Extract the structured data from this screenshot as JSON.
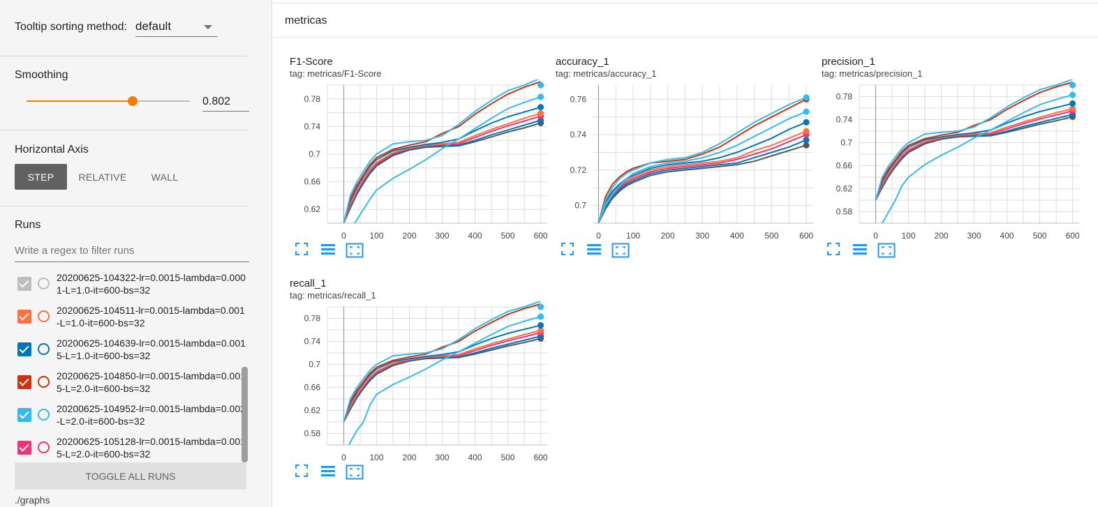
{
  "sidebar": {
    "tooltip_label": "Tooltip sorting method:",
    "tooltip_value": "default",
    "smoothing_label": "Smoothing",
    "smoothing_value": "0.802",
    "smoothing_fraction": 0.802,
    "horizontal_axis_label": "Horizontal Axis",
    "axis_buttons": [
      "STEP",
      "RELATIVE",
      "WALL"
    ],
    "runs_label": "Runs",
    "runs_filter_placeholder": "Write a regex to filter runs",
    "runs": [
      {
        "name": "20200625-104322-lr=0.0015-lambda=0.0001-L=1.0-it=600-bs=32",
        "color": "#bdbdbd",
        "checked": true
      },
      {
        "name": "20200625-104511-lr=0.0015-lambda=0.001-L=1.0-it=600-bs=32",
        "color": "#ff7043",
        "checked": true
      },
      {
        "name": "20200625-104639-lr=0.0015-lambda=0.0015-L=1.0-it=600-bs=32",
        "color": "#0077bb",
        "checked": true
      },
      {
        "name": "20200625-104850-lr=0.0015-lambda=0.0015-L=2.0-it=600-bs=32",
        "color": "#cc3311",
        "checked": true
      },
      {
        "name": "20200625-104952-lr=0.0015-lambda=0.002-L=2.0-it=600-bs=32",
        "color": "#33bbee",
        "checked": true
      },
      {
        "name": "20200625-105128-lr=0.0015-lambda=0.0015-L=2.0-it=600-bs=32",
        "color": "#ee3377",
        "checked": true
      }
    ],
    "toggle_all_label": "TOGGLE ALL RUNS",
    "graphs_dir": "./graphs"
  },
  "main": {
    "group_title": "metricas",
    "tool_icons": [
      "fullscreen-icon",
      "data-table-icon",
      "fit-domain-icon"
    ]
  },
  "chart_data": [
    {
      "type": "line",
      "title": "F1-Score",
      "subtitle": "tag: metricas/F1-Score",
      "xlabel": "",
      "ylabel": "",
      "xlim": [
        -50,
        620
      ],
      "ylim": [
        0.6,
        0.8
      ],
      "xticks": [
        0,
        100,
        200,
        300,
        400,
        500,
        600
      ],
      "yticks": [
        0.62,
        0.66,
        0.7,
        0.74,
        0.78
      ],
      "ytick_labels": [
        "0.62",
        "0.66",
        "0.7",
        "0.74",
        "0.78"
      ],
      "grid": true,
      "x": [
        0,
        20,
        40,
        60,
        80,
        100,
        150,
        200,
        250,
        300,
        350,
        400,
        450,
        500,
        550,
        600
      ],
      "series": [
        {
          "color": "#33bbee",
          "values": [
            0.6,
            0.64,
            0.66,
            0.675,
            0.69,
            0.7,
            0.715,
            0.718,
            0.72,
            0.727,
            0.743,
            0.762,
            0.778,
            0.792,
            0.8,
            0.81
          ]
        },
        {
          "color": "#cc3311",
          "values": [
            0.6,
            0.635,
            0.655,
            0.67,
            0.685,
            0.695,
            0.707,
            0.713,
            0.718,
            0.73,
            0.74,
            0.758,
            0.773,
            0.787,
            0.797,
            0.805
          ]
        },
        {
          "color": "#33bbee",
          "values": [
            0.57,
            0.59,
            0.605,
            0.62,
            0.635,
            0.648,
            0.665,
            0.678,
            0.692,
            0.708,
            0.722,
            0.737,
            0.752,
            0.766,
            0.775,
            0.783
          ]
        },
        {
          "color": "#0077bb",
          "values": [
            0.6,
            0.632,
            0.652,
            0.668,
            0.682,
            0.692,
            0.705,
            0.71,
            0.714,
            0.717,
            0.722,
            0.734,
            0.745,
            0.754,
            0.761,
            0.768
          ]
        },
        {
          "color": "#ff7043",
          "values": [
            0.6,
            0.628,
            0.648,
            0.664,
            0.678,
            0.688,
            0.702,
            0.709,
            0.713,
            0.715,
            0.717,
            0.727,
            0.736,
            0.744,
            0.752,
            0.759
          ]
        },
        {
          "color": "#ee3377",
          "values": [
            0.6,
            0.626,
            0.646,
            0.662,
            0.676,
            0.686,
            0.701,
            0.708,
            0.712,
            0.714,
            0.715,
            0.724,
            0.733,
            0.741,
            0.748,
            0.755
          ]
        },
        {
          "color": "#0077bb",
          "values": [
            0.6,
            0.624,
            0.644,
            0.66,
            0.674,
            0.685,
            0.7,
            0.707,
            0.711,
            0.712,
            0.713,
            0.72,
            0.728,
            0.735,
            0.742,
            0.749
          ]
        },
        {
          "color": "#555555",
          "values": [
            0.6,
            0.622,
            0.642,
            0.658,
            0.672,
            0.683,
            0.698,
            0.706,
            0.71,
            0.711,
            0.712,
            0.718,
            0.725,
            0.732,
            0.738,
            0.745
          ]
        }
      ]
    },
    {
      "type": "line",
      "title": "accuracy_1",
      "subtitle": "tag: metricas/accuracy_1",
      "xlabel": "",
      "ylabel": "",
      "xlim": [
        -15,
        620
      ],
      "ylim": [
        0.69,
        0.768
      ],
      "xticks": [
        0,
        100,
        200,
        300,
        400,
        500,
        600
      ],
      "yticks": [
        0.7,
        0.72,
        0.74,
        0.76
      ],
      "ytick_labels": [
        "0.7",
        "0.72",
        "0.74",
        "0.76"
      ],
      "grid": true,
      "x": [
        0,
        20,
        40,
        60,
        80,
        100,
        150,
        200,
        250,
        300,
        350,
        400,
        450,
        500,
        550,
        600
      ],
      "series": [
        {
          "color": "#33bbee",
          "values": [
            0.69,
            0.703,
            0.71,
            0.715,
            0.718,
            0.72,
            0.724,
            0.726,
            0.727,
            0.73,
            0.735,
            0.741,
            0.747,
            0.752,
            0.757,
            0.761
          ]
        },
        {
          "color": "#cc3311",
          "values": [
            0.69,
            0.705,
            0.712,
            0.716,
            0.719,
            0.721,
            0.724,
            0.725,
            0.726,
            0.729,
            0.733,
            0.739,
            0.745,
            0.75,
            0.755,
            0.76
          ]
        },
        {
          "color": "#33bbee",
          "values": [
            0.69,
            0.7,
            0.706,
            0.711,
            0.715,
            0.718,
            0.722,
            0.724,
            0.725,
            0.727,
            0.73,
            0.734,
            0.739,
            0.744,
            0.749,
            0.753
          ]
        },
        {
          "color": "#0077bb",
          "values": [
            0.69,
            0.702,
            0.708,
            0.712,
            0.715,
            0.717,
            0.721,
            0.723,
            0.724,
            0.725,
            0.727,
            0.73,
            0.734,
            0.738,
            0.743,
            0.747
          ]
        },
        {
          "color": "#ff7043",
          "values": [
            0.69,
            0.701,
            0.707,
            0.711,
            0.714,
            0.716,
            0.72,
            0.722,
            0.723,
            0.724,
            0.725,
            0.727,
            0.731,
            0.734,
            0.738,
            0.742
          ]
        },
        {
          "color": "#ee3377",
          "values": [
            0.69,
            0.7,
            0.706,
            0.71,
            0.713,
            0.715,
            0.719,
            0.721,
            0.722,
            0.723,
            0.724,
            0.726,
            0.729,
            0.732,
            0.736,
            0.74
          ]
        },
        {
          "color": "#0077bb",
          "values": [
            0.69,
            0.699,
            0.705,
            0.709,
            0.712,
            0.714,
            0.718,
            0.72,
            0.721,
            0.722,
            0.723,
            0.724,
            0.727,
            0.73,
            0.733,
            0.737
          ]
        },
        {
          "color": "#555555",
          "values": [
            0.69,
            0.698,
            0.704,
            0.708,
            0.711,
            0.713,
            0.717,
            0.719,
            0.72,
            0.721,
            0.722,
            0.723,
            0.725,
            0.728,
            0.731,
            0.734
          ]
        }
      ]
    },
    {
      "type": "line",
      "title": "precision_1",
      "subtitle": "tag: metricas/precision_1",
      "xlabel": "",
      "ylabel": "",
      "xlim": [
        -50,
        620
      ],
      "ylim": [
        0.56,
        0.8
      ],
      "xticks": [
        0,
        100,
        200,
        300,
        400,
        500,
        600
      ],
      "yticks": [
        0.58,
        0.62,
        0.66,
        0.7,
        0.74,
        0.78
      ],
      "ytick_labels": [
        "0.58",
        "0.62",
        "0.66",
        "0.7",
        "0.74",
        "0.78"
      ],
      "grid": true,
      "x": [
        0,
        20,
        40,
        60,
        80,
        100,
        150,
        200,
        250,
        300,
        350,
        400,
        450,
        500,
        550,
        600
      ],
      "series": [
        {
          "color": "#33bbee",
          "values": [
            0.6,
            0.64,
            0.66,
            0.675,
            0.69,
            0.7,
            0.715,
            0.718,
            0.72,
            0.727,
            0.743,
            0.762,
            0.778,
            0.792,
            0.8,
            0.81
          ]
        },
        {
          "color": "#cc3311",
          "values": [
            0.6,
            0.635,
            0.655,
            0.67,
            0.685,
            0.695,
            0.707,
            0.713,
            0.718,
            0.73,
            0.74,
            0.758,
            0.773,
            0.787,
            0.797,
            0.805
          ]
        },
        {
          "color": "#33bbee",
          "values": [
            0.54,
            0.56,
            0.58,
            0.6,
            0.625,
            0.64,
            0.662,
            0.678,
            0.692,
            0.708,
            0.722,
            0.737,
            0.752,
            0.766,
            0.775,
            0.783
          ]
        },
        {
          "color": "#0077bb",
          "values": [
            0.6,
            0.632,
            0.652,
            0.668,
            0.682,
            0.692,
            0.705,
            0.71,
            0.714,
            0.717,
            0.722,
            0.734,
            0.745,
            0.754,
            0.761,
            0.768
          ]
        },
        {
          "color": "#ff7043",
          "values": [
            0.6,
            0.628,
            0.648,
            0.664,
            0.678,
            0.688,
            0.702,
            0.709,
            0.713,
            0.715,
            0.717,
            0.727,
            0.736,
            0.744,
            0.752,
            0.759
          ]
        },
        {
          "color": "#ee3377",
          "values": [
            0.6,
            0.626,
            0.646,
            0.662,
            0.676,
            0.686,
            0.701,
            0.708,
            0.712,
            0.714,
            0.715,
            0.724,
            0.733,
            0.741,
            0.748,
            0.755
          ]
        },
        {
          "color": "#0077bb",
          "values": [
            0.6,
            0.624,
            0.644,
            0.66,
            0.674,
            0.685,
            0.7,
            0.707,
            0.711,
            0.712,
            0.713,
            0.72,
            0.728,
            0.735,
            0.742,
            0.749
          ]
        },
        {
          "color": "#555555",
          "values": [
            0.6,
            0.622,
            0.642,
            0.658,
            0.672,
            0.683,
            0.698,
            0.706,
            0.71,
            0.711,
            0.712,
            0.718,
            0.725,
            0.732,
            0.738,
            0.745
          ]
        }
      ]
    },
    {
      "type": "line",
      "title": "recall_1",
      "subtitle": "tag: metricas/recall_1",
      "xlabel": "",
      "ylabel": "",
      "xlim": [
        -50,
        620
      ],
      "ylim": [
        0.56,
        0.8
      ],
      "xticks": [
        0,
        100,
        200,
        300,
        400,
        500,
        600
      ],
      "yticks": [
        0.58,
        0.62,
        0.66,
        0.7,
        0.74,
        0.78
      ],
      "ytick_labels": [
        "0.58",
        "0.62",
        "0.66",
        "0.7",
        "0.74",
        "0.78"
      ],
      "grid": true,
      "x": [
        0,
        20,
        40,
        60,
        80,
        100,
        150,
        200,
        250,
        300,
        350,
        400,
        450,
        500,
        550,
        600
      ],
      "series": [
        {
          "color": "#33bbee",
          "values": [
            0.6,
            0.64,
            0.66,
            0.675,
            0.69,
            0.7,
            0.715,
            0.718,
            0.72,
            0.727,
            0.743,
            0.762,
            0.778,
            0.792,
            0.8,
            0.81
          ]
        },
        {
          "color": "#cc3311",
          "values": [
            0.6,
            0.635,
            0.655,
            0.67,
            0.685,
            0.695,
            0.707,
            0.713,
            0.718,
            0.73,
            0.74,
            0.758,
            0.773,
            0.787,
            0.797,
            0.805
          ]
        },
        {
          "color": "#33bbee",
          "values": [
            0.54,
            0.565,
            0.585,
            0.6,
            0.63,
            0.648,
            0.665,
            0.678,
            0.692,
            0.708,
            0.722,
            0.737,
            0.752,
            0.766,
            0.775,
            0.783
          ]
        },
        {
          "color": "#0077bb",
          "values": [
            0.6,
            0.632,
            0.652,
            0.668,
            0.682,
            0.692,
            0.705,
            0.71,
            0.714,
            0.717,
            0.722,
            0.734,
            0.745,
            0.754,
            0.761,
            0.768
          ]
        },
        {
          "color": "#ff7043",
          "values": [
            0.6,
            0.628,
            0.648,
            0.664,
            0.678,
            0.688,
            0.702,
            0.709,
            0.713,
            0.715,
            0.717,
            0.727,
            0.736,
            0.744,
            0.752,
            0.759
          ]
        },
        {
          "color": "#ee3377",
          "values": [
            0.6,
            0.626,
            0.646,
            0.662,
            0.676,
            0.686,
            0.701,
            0.708,
            0.712,
            0.714,
            0.715,
            0.724,
            0.733,
            0.741,
            0.748,
            0.755
          ]
        },
        {
          "color": "#0077bb",
          "values": [
            0.6,
            0.624,
            0.644,
            0.66,
            0.674,
            0.685,
            0.7,
            0.707,
            0.711,
            0.712,
            0.713,
            0.72,
            0.728,
            0.735,
            0.742,
            0.749
          ]
        },
        {
          "color": "#555555",
          "values": [
            0.6,
            0.622,
            0.642,
            0.658,
            0.672,
            0.683,
            0.698,
            0.706,
            0.71,
            0.711,
            0.712,
            0.718,
            0.725,
            0.732,
            0.738,
            0.745
          ]
        }
      ]
    }
  ]
}
